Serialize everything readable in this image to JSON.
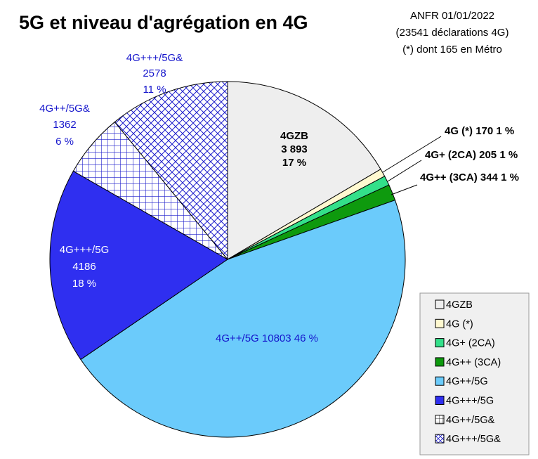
{
  "chart_data": {
    "type": "pie",
    "title": "5G et niveau d'agrégation en 4G",
    "note_lines": [
      "ANFR 01/01/2022",
      "(23541 déclarations 4G)",
      "(*) dont 165 en Métro"
    ],
    "slices": [
      {
        "key": "4gzb",
        "name": "4GZB",
        "value": 3893,
        "value_text": "3 893",
        "percent": 17,
        "percent_text": "17 %",
        "color": "#eeeeee",
        "pattern": "none"
      },
      {
        "key": "4g",
        "name": "4G (*)",
        "value": 170,
        "value_text": "170",
        "percent": 1,
        "percent_text": "1 %",
        "color": "#fff9d0",
        "pattern": "none"
      },
      {
        "key": "4g2ca",
        "name": "4G+ (2CA)",
        "value": 205,
        "value_text": "205",
        "percent": 1,
        "percent_text": "1 %",
        "color": "#33e08a",
        "pattern": "none"
      },
      {
        "key": "4g3ca",
        "name": "4G++ (3CA)",
        "value": 344,
        "value_text": "344",
        "percent": 1,
        "percent_text": "1 %",
        "color": "#0e9a0e",
        "pattern": "none"
      },
      {
        "key": "5g2",
        "name": "4G++/5G",
        "value": 10803,
        "value_text": "10803",
        "percent": 46,
        "percent_text": "46 %",
        "color": "#6bcbfb",
        "pattern": "none"
      },
      {
        "key": "5g3",
        "name": "4G+++/5G",
        "value": 4186,
        "value_text": "4186",
        "percent": 18,
        "percent_text": "18 %",
        "color": "#2f2ff0",
        "pattern": "none"
      },
      {
        "key": "5g2a",
        "name": "4G++/5G&",
        "value": 1362,
        "value_text": "1362",
        "percent": 6,
        "percent_text": "6 %",
        "color": "#1e1ecc",
        "pattern": "grid"
      },
      {
        "key": "5g3a",
        "name": "4G+++/5G&",
        "value": 2578,
        "value_text": "2578",
        "percent": 11,
        "percent_text": "11 %",
        "color": "#1e1ecc",
        "pattern": "crosshatch"
      }
    ],
    "legend_position": "bottom-right"
  }
}
